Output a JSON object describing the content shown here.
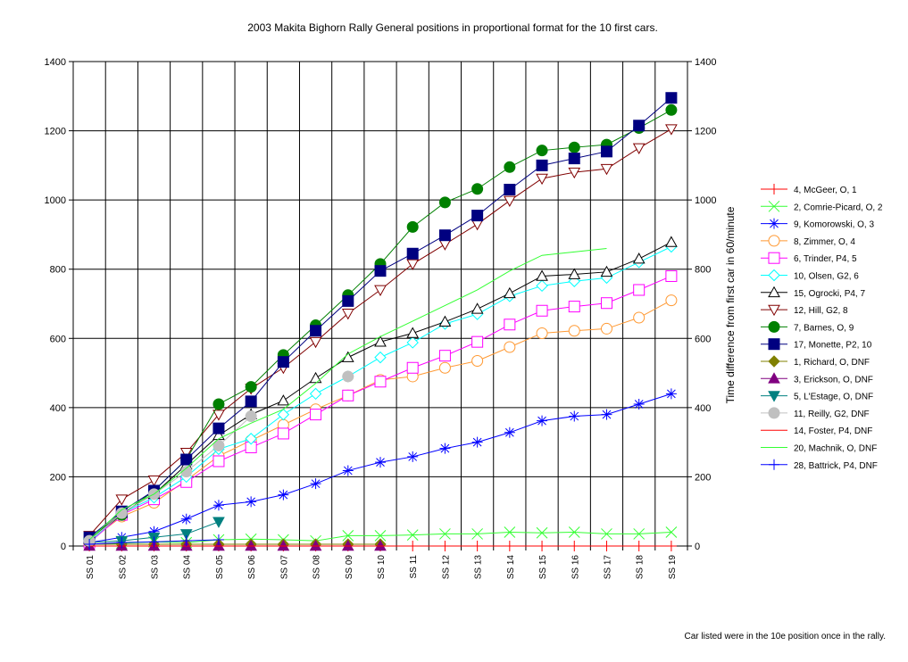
{
  "chart_data": {
    "type": "line",
    "title": "2003 Makita Bighorn Rally  General positions in proportional format for the 10 first cars.",
    "ylabel_right": "Time difference from first car in 60/minute",
    "note": "Car listed were in the 10e position once in the rally.",
    "categories": [
      "SS 01",
      "SS 02",
      "SS 03",
      "SS 04",
      "SS 05",
      "SS 06",
      "SS 07",
      "SS 08",
      "SS 09",
      "SS 10",
      "SS 11",
      "SS 12",
      "SS 13",
      "SS 14",
      "SS 15",
      "SS 16",
      "SS 17",
      "SS 18",
      "SS 19"
    ],
    "ylim": [
      0,
      1400
    ],
    "yticks": [
      "0",
      "200",
      "400",
      "600",
      "800",
      "1000",
      "1200",
      "1400"
    ],
    "grid": true,
    "legend_position": "right",
    "series": [
      {
        "name": "4, McGeer, O, 1",
        "color": "#FF0000",
        "marker": "plus",
        "values": [
          0,
          0,
          0,
          0,
          0,
          0,
          0,
          0,
          0,
          0,
          0,
          0,
          0,
          0,
          0,
          0,
          0,
          0,
          0
        ]
      },
      {
        "name": "2, Comrie-Picard, O, 2",
        "color": "#33FF33",
        "marker": "x",
        "values": [
          5,
          8,
          12,
          10,
          18,
          20,
          18,
          15,
          30,
          30,
          32,
          35,
          35,
          40,
          38,
          40,
          35,
          35,
          40
        ]
      },
      {
        "name": "9, Komorowski, O, 3",
        "color": "#0000FF",
        "marker": "star",
        "values": [
          10,
          25,
          42,
          78,
          118,
          128,
          148,
          180,
          218,
          242,
          258,
          282,
          300,
          328,
          362,
          375,
          380,
          410,
          440
        ]
      },
      {
        "name": "8, Zimmer, O, 4",
        "color": "#FF9933",
        "marker": "circle-open",
        "values": [
          15,
          85,
          125,
          190,
          260,
          305,
          350,
          395,
          435,
          480,
          490,
          515,
          535,
          575,
          615,
          622,
          628,
          660,
          710
        ]
      },
      {
        "name": "6, Trinder, P4, 5",
        "color": "#FF00FF",
        "marker": "square-open",
        "values": [
          10,
          90,
          135,
          185,
          245,
          285,
          325,
          380,
          435,
          475,
          515,
          550,
          590,
          640,
          680,
          692,
          702,
          740,
          780
        ]
      },
      {
        "name": "10, Olsen, G2, 6",
        "color": "#00FFFF",
        "marker": "diamond-open",
        "values": [
          12,
          95,
          140,
          200,
          280,
          310,
          380,
          440,
          490,
          545,
          588,
          642,
          670,
          722,
          752,
          765,
          775,
          820,
          865
        ]
      },
      {
        "name": "15, Ogrocki, P4, 7",
        "color": "#000000",
        "marker": "triangle-open",
        "values": [
          20,
          95,
          150,
          235,
          320,
          380,
          420,
          485,
          545,
          590,
          615,
          648,
          685,
          730,
          780,
          785,
          792,
          830,
          878
        ]
      },
      {
        "name": "12, Hill, G2, 8",
        "color": "#800000",
        "marker": "triangle-down-open",
        "values": [
          30,
          135,
          190,
          270,
          380,
          455,
          515,
          590,
          672,
          740,
          815,
          872,
          930,
          998,
          1062,
          1080,
          1090,
          1150,
          1205
        ]
      },
      {
        "name": "7, Barnes, O, 9",
        "color": "#008000",
        "marker": "circle-filled",
        "values": [
          20,
          90,
          160,
          250,
          410,
          460,
          552,
          638,
          725,
          815,
          922,
          993,
          1032,
          1095,
          1143,
          1152,
          1160,
          1208,
          1260
        ]
      },
      {
        "name": "17, Monette, P2, 10",
        "color": "#000080",
        "marker": "square-filled",
        "values": [
          25,
          100,
          160,
          250,
          340,
          418,
          532,
          622,
          708,
          795,
          845,
          898,
          955,
          1030,
          1100,
          1120,
          1140,
          1215,
          1295
        ]
      },
      {
        "name": "1, Richard, O, DNF",
        "color": "#808000",
        "marker": "diamond-filled",
        "values": [
          5,
          5,
          5,
          5,
          5,
          5,
          5,
          5,
          5,
          5,
          null,
          null,
          null,
          null,
          null,
          null,
          null,
          null,
          null
        ]
      },
      {
        "name": "3, Erickson, O, DNF",
        "color": "#800080",
        "marker": "triangle-filled",
        "values": [
          0,
          0,
          0,
          0,
          0,
          0,
          0,
          0,
          0,
          0,
          null,
          null,
          null,
          null,
          null,
          null,
          null,
          null,
          null
        ]
      },
      {
        "name": "5, L'Estage, O, DNF",
        "color": "#008080",
        "marker": "triangle-down-filled",
        "values": [
          10,
          15,
          25,
          35,
          70,
          null,
          null,
          null,
          null,
          null,
          null,
          null,
          null,
          null,
          null,
          null,
          null,
          null,
          null
        ]
      },
      {
        "name": "11, Reilly, G2, DNF",
        "color": "#C0C0C0",
        "marker": "circle-filled",
        "values": [
          15,
          95,
          150,
          215,
          290,
          375,
          null,
          null,
          490,
          null,
          null,
          null,
          null,
          null,
          null,
          null,
          null,
          null,
          null
        ]
      },
      {
        "name": "14, Foster, P4, DNF",
        "color": "#FF0000",
        "marker": "none",
        "values": [
          0,
          0,
          0,
          0,
          0,
          0,
          0,
          0,
          0,
          0,
          0,
          null,
          null,
          null,
          null,
          null,
          null,
          null,
          null
        ]
      },
      {
        "name": "20, Machnik, O, DNF",
        "color": "#33FF33",
        "marker": "none",
        "values": [
          18,
          105,
          150,
          225,
          310,
          355,
          395,
          470,
          555,
          605,
          650,
          695,
          740,
          795,
          840,
          850,
          860,
          null,
          null
        ]
      },
      {
        "name": "28, Battrick, P4, DNF",
        "color": "#0000FF",
        "marker": "plus",
        "values": [
          5,
          10,
          12,
          15,
          18,
          null,
          null,
          null,
          null,
          null,
          null,
          null,
          null,
          null,
          null,
          null,
          null,
          null,
          null
        ]
      }
    ]
  }
}
